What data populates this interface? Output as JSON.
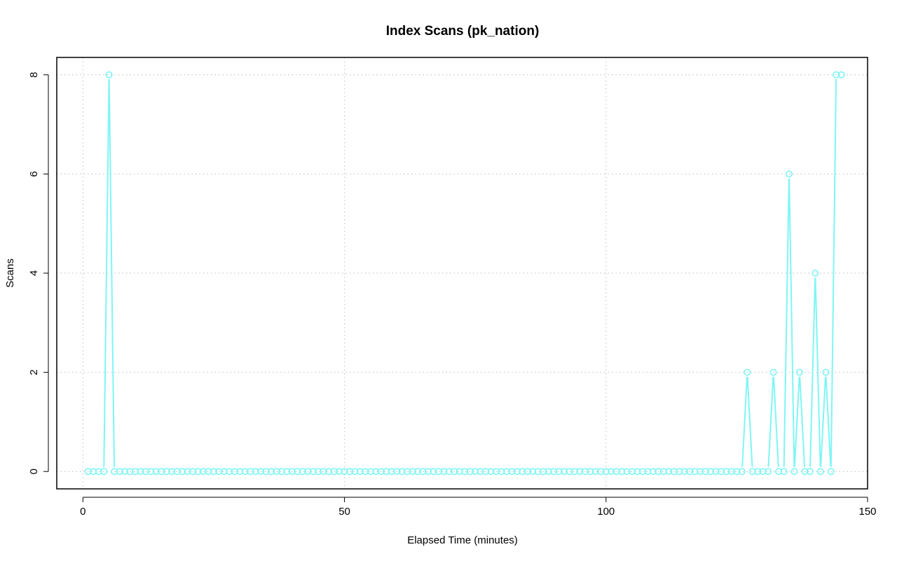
{
  "chart_data": {
    "type": "line",
    "title": "Index Scans (pk_nation)",
    "xlabel": "Elapsed Time (minutes)",
    "ylabel": "Scans",
    "xlim": [
      -5,
      150
    ],
    "ylim": [
      -0.35,
      8.35
    ],
    "x_ticks": [
      0,
      50,
      100,
      150
    ],
    "y_ticks": [
      0,
      2,
      4,
      6,
      8
    ],
    "grid": true,
    "legend": "none",
    "series": [
      {
        "color": "#7ff5f5",
        "marker": "open-circle",
        "x_start": 1,
        "x_step": 1,
        "values": [
          0,
          0,
          0,
          0,
          8,
          0,
          0,
          0,
          0,
          0,
          0,
          0,
          0,
          0,
          0,
          0,
          0,
          0,
          0,
          0,
          0,
          0,
          0,
          0,
          0,
          0,
          0,
          0,
          0,
          0,
          0,
          0,
          0,
          0,
          0,
          0,
          0,
          0,
          0,
          0,
          0,
          0,
          0,
          0,
          0,
          0,
          0,
          0,
          0,
          0,
          0,
          0,
          0,
          0,
          0,
          0,
          0,
          0,
          0,
          0,
          0,
          0,
          0,
          0,
          0,
          0,
          0,
          0,
          0,
          0,
          0,
          0,
          0,
          0,
          0,
          0,
          0,
          0,
          0,
          0,
          0,
          0,
          0,
          0,
          0,
          0,
          0,
          0,
          0,
          0,
          0,
          0,
          0,
          0,
          0,
          0,
          0,
          0,
          0,
          0,
          0,
          0,
          0,
          0,
          0,
          0,
          0,
          0,
          0,
          0,
          0,
          0,
          0,
          0,
          0,
          0,
          0,
          0,
          0,
          0,
          0,
          0,
          0,
          0,
          0,
          0,
          2,
          0,
          0,
          0,
          0,
          2,
          0,
          0,
          6,
          0,
          2,
          0,
          0,
          4,
          0,
          2,
          0,
          8,
          8
        ]
      }
    ]
  }
}
